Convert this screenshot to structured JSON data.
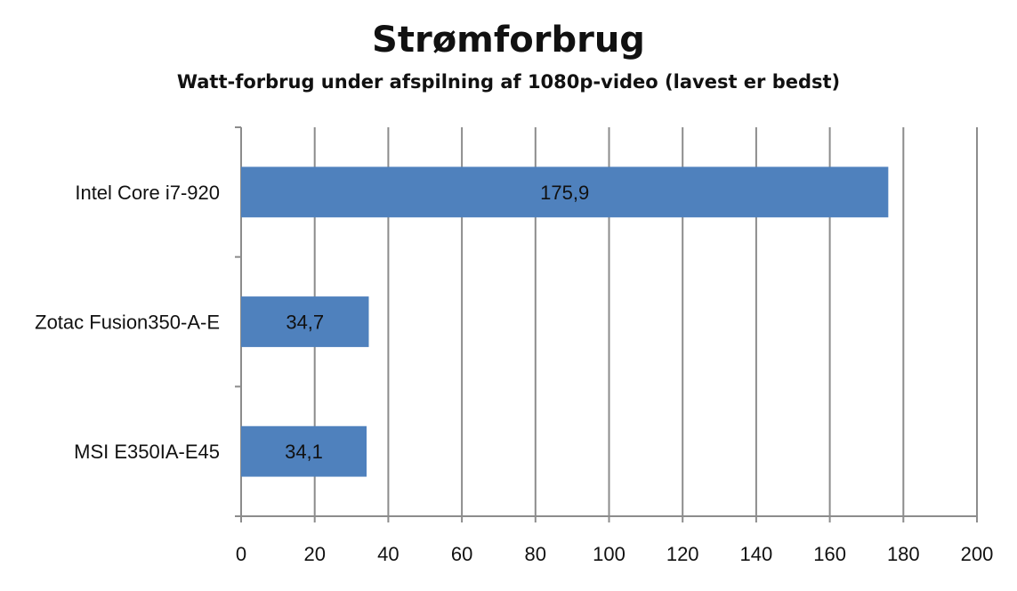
{
  "chart_data": {
    "type": "bar",
    "orientation": "horizontal",
    "title": "Strømforbrug",
    "subtitle": "Watt-forbrug under afspilning af 1080p-video (lavest er bedst)",
    "categories": [
      "Intel Core i7-920",
      "Zotac Fusion350-A-E",
      "MSI E350IA-E45"
    ],
    "values": [
      175.9,
      34.7,
      34.1
    ],
    "data_labels": [
      "175,9",
      "34,7",
      "34,1"
    ],
    "xlim": [
      0,
      200
    ],
    "x_ticks": [
      0,
      20,
      40,
      60,
      80,
      100,
      120,
      140,
      160,
      180,
      200
    ],
    "grid": "vertical",
    "legend": "none",
    "colors": {
      "bar": "#4f81bd",
      "grid": "#8c8c8c",
      "axis": "#8c8c8c"
    }
  }
}
